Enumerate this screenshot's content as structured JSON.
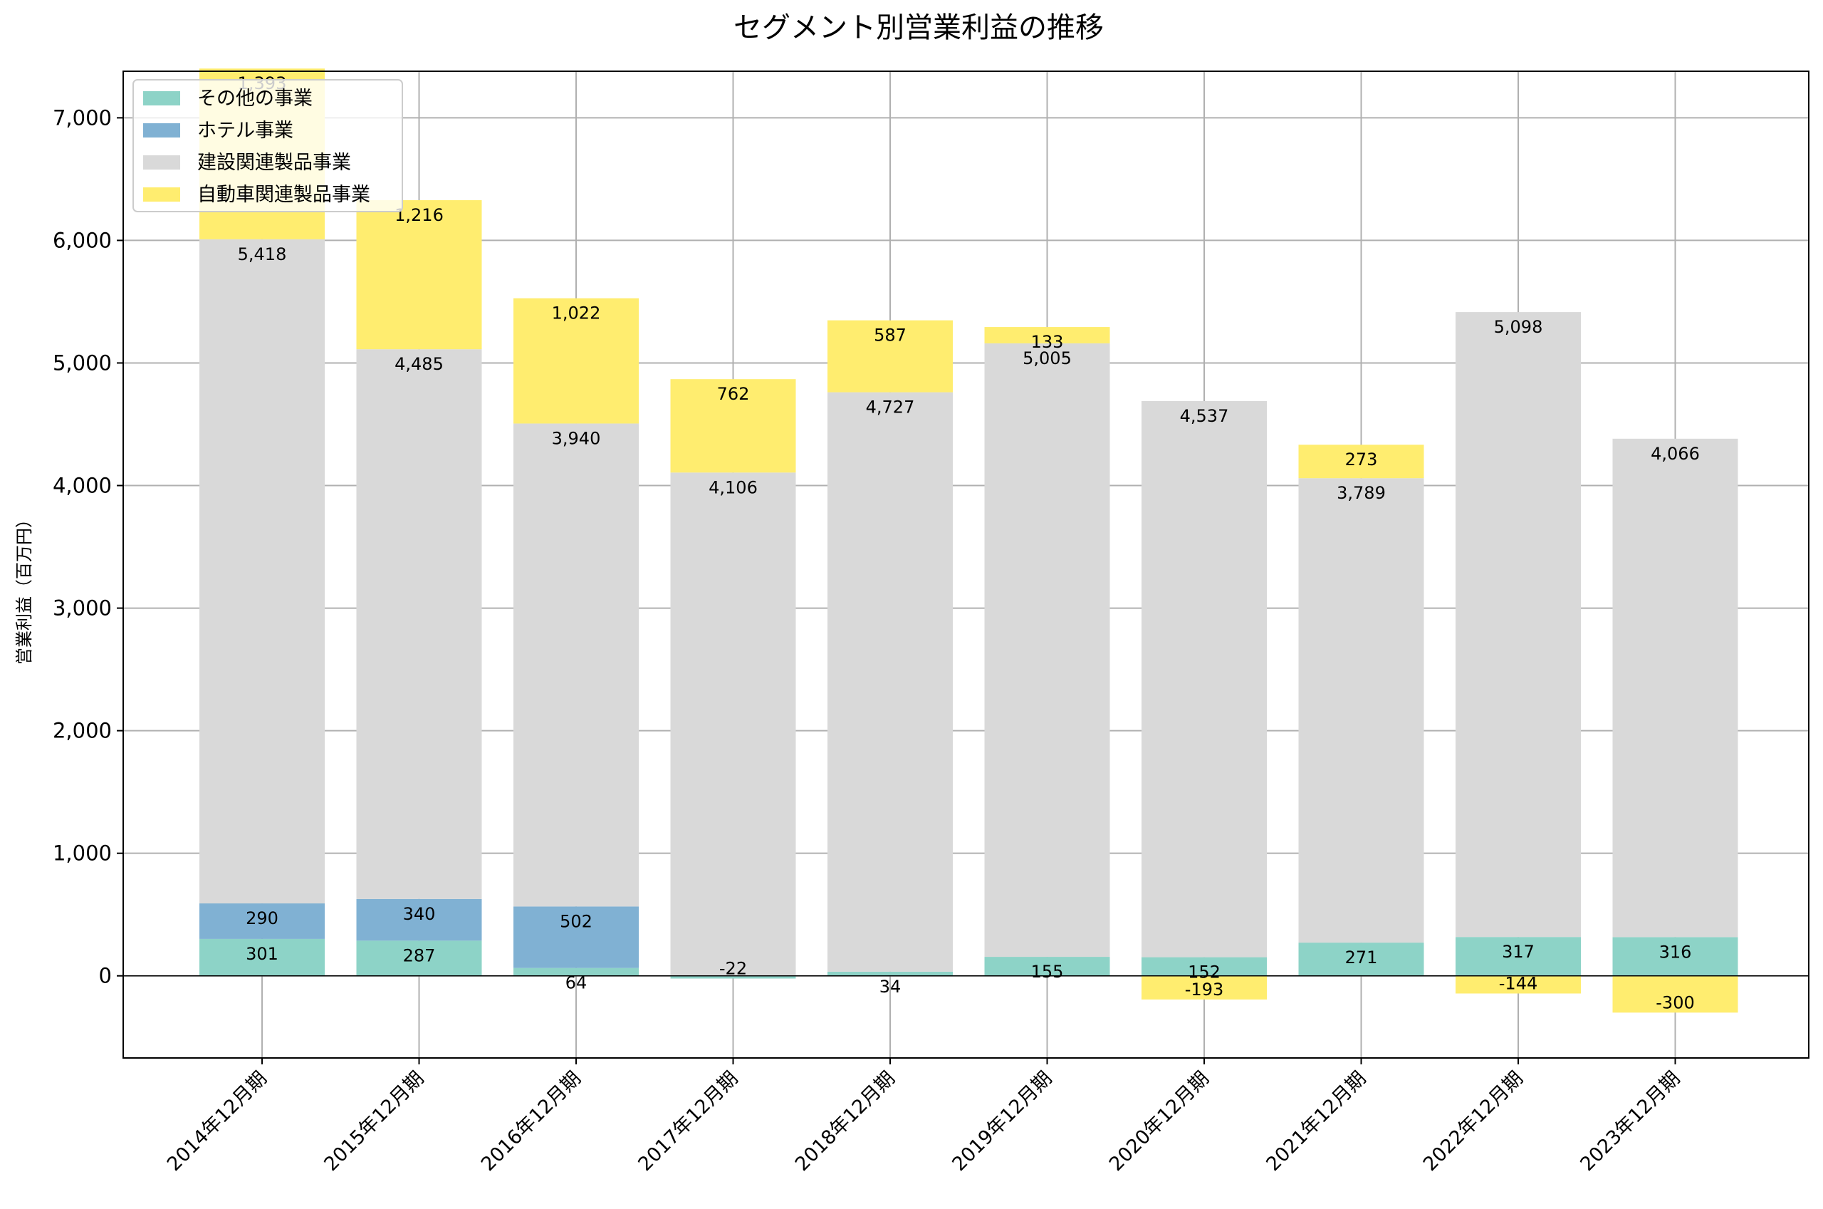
{
  "chart_data": {
    "type": "bar",
    "stacked": true,
    "title": "セグメント別営業利益の推移",
    "xlabel": "",
    "ylabel": "営業利益（百万円）",
    "ylim": [
      -670,
      7380
    ],
    "yticks": [
      0,
      1000,
      2000,
      3000,
      4000,
      5000,
      6000,
      7000
    ],
    "ytick_labels": [
      "0",
      "1,000",
      "2,000",
      "3,000",
      "4,000",
      "5,000",
      "6,000",
      "7,000"
    ],
    "grid": true,
    "legend_position": "top-left",
    "categories": [
      "2014年12月期",
      "2015年12月期",
      "2016年12月期",
      "2017年12月期",
      "2018年12月期",
      "2019年12月期",
      "2020年12月期",
      "2021年12月期",
      "2022年12月期",
      "2023年12月期"
    ],
    "series": [
      {
        "name": "その他の事業",
        "color": "#8dd3c7",
        "values": [
          301,
          287,
          64,
          -22,
          34,
          155,
          152,
          271,
          317,
          316
        ]
      },
      {
        "name": "ホテル事業",
        "color": "#80b1d3",
        "values": [
          290,
          340,
          502,
          null,
          null,
          null,
          null,
          null,
          null,
          null
        ]
      },
      {
        "name": "建設関連製品事業",
        "color": "#d9d9d9",
        "values": [
          5418,
          4485,
          3940,
          4106,
          4727,
          5005,
          4537,
          3789,
          5098,
          4066
        ]
      },
      {
        "name": "自動車関連製品事業",
        "color": "#ffed6f",
        "values": [
          1393,
          1216,
          1022,
          762,
          587,
          133,
          -193,
          273,
          -144,
          -300
        ]
      }
    ]
  }
}
